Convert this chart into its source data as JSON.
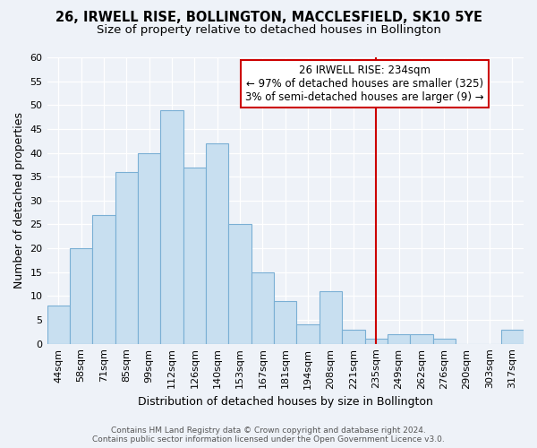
{
  "title": "26, IRWELL RISE, BOLLINGTON, MACCLESFIELD, SK10 5YE",
  "subtitle": "Size of property relative to detached houses in Bollington",
  "xlabel": "Distribution of detached houses by size in Bollington",
  "ylabel": "Number of detached properties",
  "bar_labels": [
    "44sqm",
    "58sqm",
    "71sqm",
    "85sqm",
    "99sqm",
    "112sqm",
    "126sqm",
    "140sqm",
    "153sqm",
    "167sqm",
    "181sqm",
    "194sqm",
    "208sqm",
    "221sqm",
    "235sqm",
    "249sqm",
    "262sqm",
    "276sqm",
    "290sqm",
    "303sqm",
    "317sqm"
  ],
  "bar_values": [
    8,
    20,
    27,
    36,
    40,
    49,
    37,
    42,
    25,
    15,
    9,
    4,
    11,
    3,
    1,
    2,
    2,
    1,
    0,
    0,
    3
  ],
  "bar_color": "#c8dff0",
  "bar_edge_color": "#7aafd4",
  "ylim": [
    0,
    60
  ],
  "yticks": [
    0,
    5,
    10,
    15,
    20,
    25,
    30,
    35,
    40,
    45,
    50,
    55,
    60
  ],
  "vline_x_index": 14,
  "vline_color": "#cc0000",
  "annotation_title": "26 IRWELL RISE: 234sqm",
  "annotation_line1": "← 97% of detached houses are smaller (325)",
  "annotation_line2": "3% of semi-detached houses are larger (9) →",
  "annotation_box_color": "#ffffff",
  "annotation_box_edge": "#cc0000",
  "footer_line1": "Contains HM Land Registry data © Crown copyright and database right 2024.",
  "footer_line2": "Contains public sector information licensed under the Open Government Licence v3.0.",
  "background_color": "#eef2f8",
  "grid_color": "#ffffff",
  "title_fontsize": 10.5,
  "subtitle_fontsize": 9.5,
  "axis_label_fontsize": 9,
  "tick_fontsize": 8,
  "ann_fontsize": 8.5,
  "footer_fontsize": 6.5
}
